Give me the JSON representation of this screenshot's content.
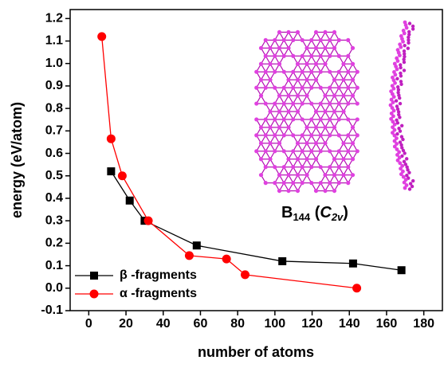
{
  "chart_data": {
    "type": "line",
    "x_label": "number of atoms",
    "y_label": "energy (eV/atom)",
    "xlim": [
      -10,
      190
    ],
    "xticks": [
      0,
      20,
      40,
      60,
      80,
      100,
      120,
      140,
      160,
      180
    ],
    "ylim": [
      -0.1,
      1.24
    ],
    "yticks": [
      -0.1,
      {
        "value": 0,
        "label": "0.0"
      },
      0.1,
      0.2,
      0.3,
      0.4,
      0.5,
      0.6,
      0.7,
      0.8,
      0.9,
      {
        "value": 1,
        "label": "1.0"
      },
      1.1,
      1.2
    ],
    "legend": "bottom-left",
    "series": [
      {
        "name": "β -fragments",
        "color": "#000000",
        "marker": "square",
        "x": [
          12,
          22,
          30,
          58,
          104,
          142,
          168
        ],
        "values": [
          0.52,
          0.39,
          0.3,
          0.19,
          0.12,
          0.11,
          0.08
        ]
      },
      {
        "name": "α -fragments",
        "color": "#ff0000",
        "marker": "circle",
        "x": [
          7,
          12,
          18,
          32,
          54,
          74,
          84,
          144
        ],
        "values": [
          1.12,
          0.665,
          0.5,
          0.3,
          0.145,
          0.13,
          0.06,
          0.0
        ]
      }
    ],
    "annotation": [
      "B",
      "144",
      " (",
      "C",
      "2v",
      ")"
    ]
  }
}
